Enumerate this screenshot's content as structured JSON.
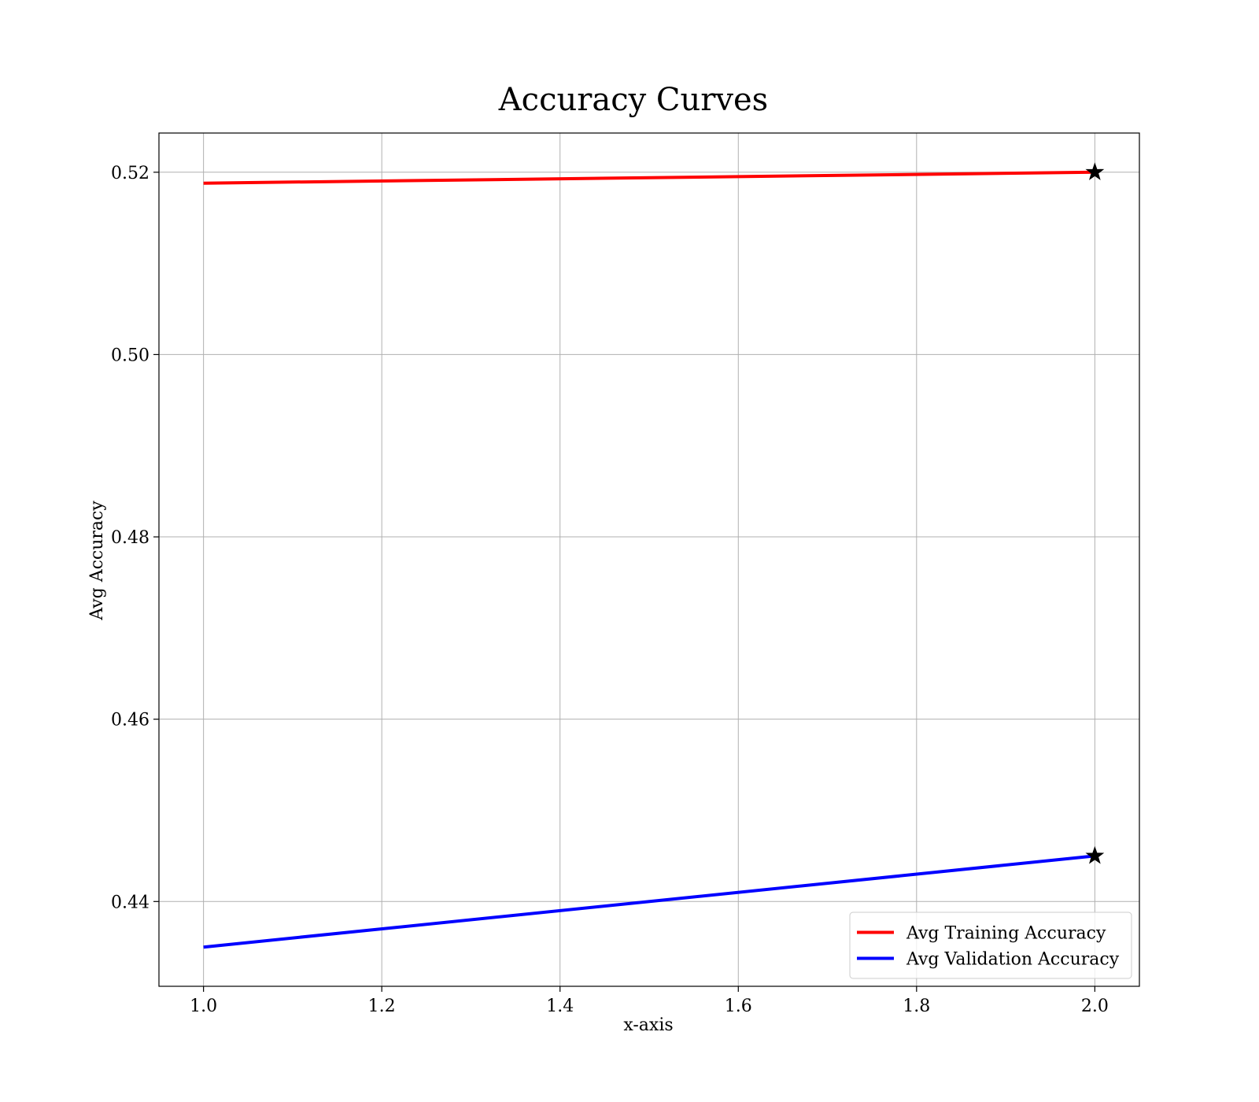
{
  "chart_data": {
    "type": "line",
    "title": "Accuracy Curves",
    "xlabel": "x-axis",
    "ylabel": "Avg Accuracy",
    "xlim": [
      0.95,
      2.05
    ],
    "ylim": [
      0.4307,
      0.5243
    ],
    "xticks": [
      1.0,
      1.2,
      1.4,
      1.6,
      1.8,
      2.0
    ],
    "xtick_labels": [
      "1.0",
      "1.2",
      "1.4",
      "1.6",
      "1.8",
      "2.0"
    ],
    "yticks": [
      0.44,
      0.46,
      0.48,
      0.5,
      0.52
    ],
    "ytick_labels": [
      "0.44",
      "0.46",
      "0.48",
      "0.50",
      "0.52"
    ],
    "grid": true,
    "legend_position": "bottom-right",
    "series": [
      {
        "name": "Avg Training Accuracy",
        "color": "#ff0000",
        "x": [
          1.0,
          2.0
        ],
        "y": [
          0.5188,
          0.52
        ],
        "marker_points": [
          {
            "x": 2.0,
            "y": 0.52
          }
        ],
        "marker": "star"
      },
      {
        "name": "Avg Validation Accuracy",
        "color": "#0000ff",
        "x": [
          1.0,
          2.0
        ],
        "y": [
          0.435,
          0.445
        ],
        "marker_points": [
          {
            "x": 2.0,
            "y": 0.445
          }
        ],
        "marker": "star"
      }
    ]
  }
}
